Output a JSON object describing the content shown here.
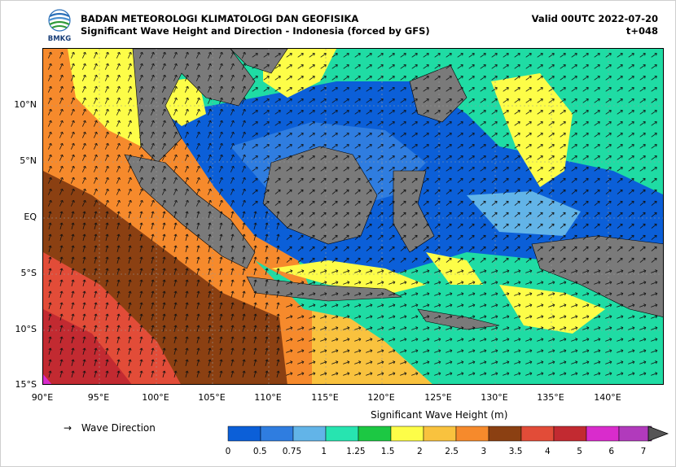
{
  "header": {
    "agency": "BADAN METEOROLOGI KLIMATOLOGI DAN GEOFISIKA",
    "subtitle": "Significant Wave Height and Direction - Indonesia (forced by GFS)",
    "valid": "Valid 00UTC 2022-07-20",
    "lead": "t+048",
    "logo_text": "BMKG"
  },
  "axes": {
    "lat_labels": [
      "10°N",
      "5°N",
      "EQ",
      "5°S",
      "10°S",
      "15°S"
    ],
    "lon_labels": [
      "90°E",
      "95°E",
      "100°E",
      "105°E",
      "110°E",
      "115°E",
      "120°E",
      "125°E",
      "130°E",
      "135°E",
      "140°E"
    ],
    "lon_range": [
      90,
      145
    ],
    "lat_range": [
      -15,
      15
    ]
  },
  "legend": {
    "arrow_glyph": "→",
    "direction_label": "Wave Direction"
  },
  "colorbar": {
    "title": "Significant Wave Height (m)",
    "ticks": [
      "0",
      "0.5",
      "0.75",
      "1",
      "1.25",
      "1.5",
      "2",
      "2.5",
      "3",
      "3.5",
      "4",
      "5",
      "6",
      "7"
    ],
    "colors": [
      "#0b5fd8",
      "#2f7de0",
      "#62b4e8",
      "#27e4b0",
      "#1cc843",
      "#fdfd48",
      "#f9c23e",
      "#f68a2c",
      "#8b4012",
      "#e24c38",
      "#c22a31",
      "#d92ccc",
      "#b13abc"
    ]
  }
}
